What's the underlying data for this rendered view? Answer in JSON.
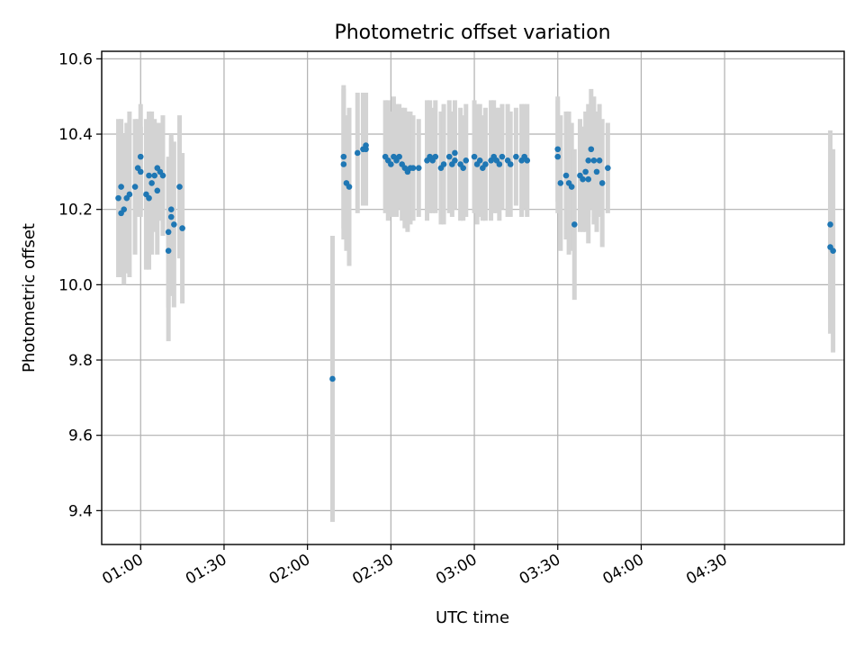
{
  "chart_data": {
    "type": "scatter",
    "title": "Photometric offset variation",
    "xlabel": "UTC time",
    "ylabel": "Photometric offset",
    "xlim": [
      "00:46",
      "05:13"
    ],
    "ylim": [
      9.31,
      10.62
    ],
    "x_ticks": [
      "01:00",
      "01:30",
      "02:00",
      "02:30",
      "03:00",
      "03:30",
      "04:00",
      "04:30"
    ],
    "y_ticks": [
      "9.4",
      "9.6",
      "9.8",
      "10.0",
      "10.2",
      "10.4",
      "10.6"
    ],
    "grid": true,
    "colors": {
      "point": "#1f77b4",
      "errorbar": "#d3d3d3"
    },
    "series": [
      {
        "points": [
          {
            "x": "00:52",
            "y": 10.23,
            "err": 0.21
          },
          {
            "x": "00:53",
            "y": 10.19,
            "err": 0.17
          },
          {
            "x": "00:53",
            "y": 10.26,
            "err": 0.18
          },
          {
            "x": "00:54",
            "y": 10.2,
            "err": 0.2
          },
          {
            "x": "00:55",
            "y": 10.23,
            "err": 0.2
          },
          {
            "x": "00:56",
            "y": 10.24,
            "err": 0.22
          },
          {
            "x": "00:58",
            "y": 10.26,
            "err": 0.18
          },
          {
            "x": "00:59",
            "y": 10.31,
            "err": 0.13
          },
          {
            "x": "01:00",
            "y": 10.34,
            "err": 0.14
          },
          {
            "x": "01:00",
            "y": 10.3,
            "err": 0.12
          },
          {
            "x": "01:02",
            "y": 10.24,
            "err": 0.2
          },
          {
            "x": "01:03",
            "y": 10.23,
            "err": 0.19
          },
          {
            "x": "01:03",
            "y": 10.29,
            "err": 0.17
          },
          {
            "x": "01:04",
            "y": 10.27,
            "err": 0.19
          },
          {
            "x": "01:05",
            "y": 10.29,
            "err": 0.15
          },
          {
            "x": "01:06",
            "y": 10.31,
            "err": 0.12
          },
          {
            "x": "01:06",
            "y": 10.25,
            "err": 0.17
          },
          {
            "x": "01:07",
            "y": 10.3,
            "err": 0.13
          },
          {
            "x": "01:08",
            "y": 10.29,
            "err": 0.16
          },
          {
            "x": "01:10",
            "y": 10.09,
            "err": 0.24
          },
          {
            "x": "01:10",
            "y": 10.14,
            "err": 0.2
          },
          {
            "x": "01:11",
            "y": 10.18,
            "err": 0.21
          },
          {
            "x": "01:11",
            "y": 10.2,
            "err": 0.2
          },
          {
            "x": "01:12",
            "y": 10.16,
            "err": 0.22
          },
          {
            "x": "01:14",
            "y": 10.26,
            "err": 0.19
          },
          {
            "x": "01:15",
            "y": 10.15,
            "err": 0.2
          },
          {
            "x": "02:09",
            "y": 9.75,
            "err": 0.38
          },
          {
            "x": "02:13",
            "y": 10.32,
            "err": 0.2
          },
          {
            "x": "02:13",
            "y": 10.34,
            "err": 0.19
          },
          {
            "x": "02:14",
            "y": 10.27,
            "err": 0.18
          },
          {
            "x": "02:15",
            "y": 10.26,
            "err": 0.21
          },
          {
            "x": "02:18",
            "y": 10.35,
            "err": 0.16
          },
          {
            "x": "02:20",
            "y": 10.36,
            "err": 0.15
          },
          {
            "x": "02:21",
            "y": 10.37,
            "err": 0.14
          },
          {
            "x": "02:21",
            "y": 10.36,
            "err": 0.15
          },
          {
            "x": "02:28",
            "y": 10.34,
            "err": 0.15
          },
          {
            "x": "02:29",
            "y": 10.33,
            "err": 0.16
          },
          {
            "x": "02:30",
            "y": 10.32,
            "err": 0.14
          },
          {
            "x": "02:31",
            "y": 10.34,
            "err": 0.16
          },
          {
            "x": "02:32",
            "y": 10.33,
            "err": 0.15
          },
          {
            "x": "02:33",
            "y": 10.34,
            "err": 0.14
          },
          {
            "x": "02:34",
            "y": 10.32,
            "err": 0.15
          },
          {
            "x": "02:35",
            "y": 10.31,
            "err": 0.16
          },
          {
            "x": "02:36",
            "y": 10.3,
            "err": 0.16
          },
          {
            "x": "02:37",
            "y": 10.31,
            "err": 0.15
          },
          {
            "x": "02:38",
            "y": 10.31,
            "err": 0.14
          },
          {
            "x": "02:40",
            "y": 10.31,
            "err": 0.13
          },
          {
            "x": "02:43",
            "y": 10.33,
            "err": 0.16
          },
          {
            "x": "02:44",
            "y": 10.34,
            "err": 0.15
          },
          {
            "x": "02:45",
            "y": 10.33,
            "err": 0.14
          },
          {
            "x": "02:46",
            "y": 10.34,
            "err": 0.15
          },
          {
            "x": "02:48",
            "y": 10.31,
            "err": 0.15
          },
          {
            "x": "02:49",
            "y": 10.32,
            "err": 0.16
          },
          {
            "x": "02:51",
            "y": 10.34,
            "err": 0.15
          },
          {
            "x": "02:52",
            "y": 10.32,
            "err": 0.14
          },
          {
            "x": "02:53",
            "y": 10.33,
            "err": 0.13
          },
          {
            "x": "02:53",
            "y": 10.35,
            "err": 0.14
          },
          {
            "x": "02:55",
            "y": 10.32,
            "err": 0.15
          },
          {
            "x": "02:56",
            "y": 10.31,
            "err": 0.14
          },
          {
            "x": "02:57",
            "y": 10.33,
            "err": 0.15
          },
          {
            "x": "03:00",
            "y": 10.34,
            "err": 0.15
          },
          {
            "x": "03:01",
            "y": 10.32,
            "err": 0.16
          },
          {
            "x": "03:02",
            "y": 10.33,
            "err": 0.15
          },
          {
            "x": "03:03",
            "y": 10.31,
            "err": 0.14
          },
          {
            "x": "03:04",
            "y": 10.32,
            "err": 0.15
          },
          {
            "x": "03:06",
            "y": 10.33,
            "err": 0.16
          },
          {
            "x": "03:07",
            "y": 10.34,
            "err": 0.15
          },
          {
            "x": "03:08",
            "y": 10.33,
            "err": 0.14
          },
          {
            "x": "03:09",
            "y": 10.32,
            "err": 0.15
          },
          {
            "x": "03:10",
            "y": 10.34,
            "err": 0.14
          },
          {
            "x": "03:12",
            "y": 10.33,
            "err": 0.15
          },
          {
            "x": "03:13",
            "y": 10.32,
            "err": 0.14
          },
          {
            "x": "03:15",
            "y": 10.34,
            "err": 0.13
          },
          {
            "x": "03:17",
            "y": 10.33,
            "err": 0.15
          },
          {
            "x": "03:18",
            "y": 10.34,
            "err": 0.14
          },
          {
            "x": "03:19",
            "y": 10.33,
            "err": 0.15
          },
          {
            "x": "03:30",
            "y": 10.36,
            "err": 0.14
          },
          {
            "x": "03:30",
            "y": 10.34,
            "err": 0.15
          },
          {
            "x": "03:31",
            "y": 10.27,
            "err": 0.18
          },
          {
            "x": "03:33",
            "y": 10.29,
            "err": 0.17
          },
          {
            "x": "03:34",
            "y": 10.27,
            "err": 0.19
          },
          {
            "x": "03:35",
            "y": 10.26,
            "err": 0.17
          },
          {
            "x": "03:36",
            "y": 10.16,
            "err": 0.2
          },
          {
            "x": "03:38",
            "y": 10.29,
            "err": 0.15
          },
          {
            "x": "03:39",
            "y": 10.28,
            "err": 0.14
          },
          {
            "x": "03:40",
            "y": 10.3,
            "err": 0.16
          },
          {
            "x": "03:41",
            "y": 10.28,
            "err": 0.17
          },
          {
            "x": "03:41",
            "y": 10.33,
            "err": 0.15
          },
          {
            "x": "03:42",
            "y": 10.36,
            "err": 0.16
          },
          {
            "x": "03:43",
            "y": 10.33,
            "err": 0.17
          },
          {
            "x": "03:44",
            "y": 10.3,
            "err": 0.16
          },
          {
            "x": "03:45",
            "y": 10.33,
            "err": 0.15
          },
          {
            "x": "03:46",
            "y": 10.27,
            "err": 0.17
          },
          {
            "x": "03:48",
            "y": 10.31,
            "err": 0.12
          },
          {
            "x": "05:08",
            "y": 10.16,
            "err": 0.25
          },
          {
            "x": "05:08",
            "y": 10.1,
            "err": 0.23
          },
          {
            "x": "05:09",
            "y": 10.09,
            "err": 0.27
          }
        ]
      }
    ]
  }
}
